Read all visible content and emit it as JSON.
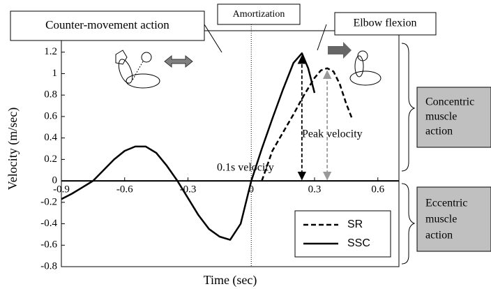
{
  "chart_data": {
    "type": "line",
    "x_label": "Time (sec)",
    "y_label": "Velocity (m/sec)",
    "xlim": [
      -0.9,
      0.7
    ],
    "xticks": [
      -0.9,
      -0.6,
      -0.3,
      0,
      0.3,
      0.6
    ],
    "ylim": [
      -0.8,
      1.4
    ],
    "yticks": [
      -0.8,
      -0.6,
      -0.4,
      -0.2,
      0,
      0.2,
      0.4,
      0.6,
      0.8,
      1,
      1.2
    ],
    "legend": "bottom-right",
    "series": [
      {
        "name": "SR",
        "color": "#000000",
        "dash": true,
        "x": [
          0.05,
          0.1,
          0.15,
          0.2,
          0.25,
          0.3,
          0.33,
          0.36,
          0.39,
          0.42,
          0.45,
          0.48
        ],
        "values": [
          0,
          0.28,
          0.45,
          0.62,
          0.8,
          0.96,
          1.03,
          1.05,
          1.02,
          0.9,
          0.72,
          0.57
        ]
      },
      {
        "name": "SSC",
        "color": "#000000",
        "dash": false,
        "x": [
          -0.9,
          -0.85,
          -0.8,
          -0.75,
          -0.7,
          -0.65,
          -0.6,
          -0.55,
          -0.5,
          -0.45,
          -0.4,
          -0.35,
          -0.3,
          -0.25,
          -0.2,
          -0.15,
          -0.1,
          -0.05,
          0,
          0.05,
          0.1,
          0.15,
          0.2,
          0.24,
          0.27,
          0.3
        ],
        "values": [
          -0.17,
          -0.12,
          -0.06,
          0,
          0.1,
          0.2,
          0.28,
          0.32,
          0.32,
          0.26,
          0.14,
          0,
          -0.16,
          -0.32,
          -0.45,
          -0.52,
          -0.55,
          -0.4,
          0,
          0.3,
          0.58,
          0.85,
          1.1,
          1.19,
          1.05,
          0.82
        ]
      }
    ],
    "annotations": {
      "counter_movement": "Counter-movement action",
      "amortization": "Amortization",
      "elbow_flexion": "Elbow flexion",
      "peak_velocity": "Peak velocity",
      "velocity_01s": "0.1s velocity",
      "concentric": [
        "Concentric",
        "muscle",
        "action"
      ],
      "eccentric": [
        "Eccentric",
        "muscle",
        "action"
      ]
    }
  }
}
